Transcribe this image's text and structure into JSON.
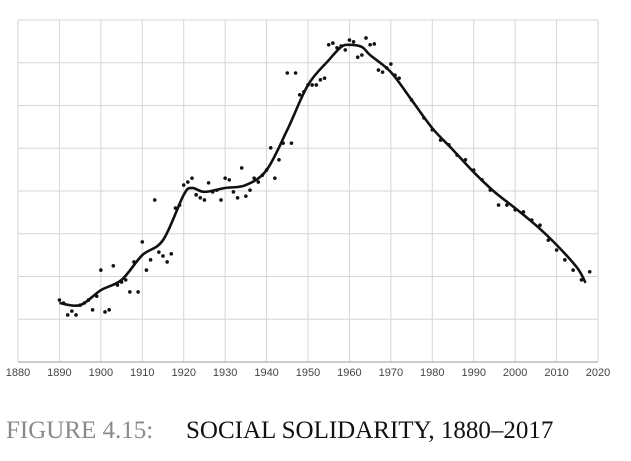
{
  "chart_data": {
    "type": "scatter-trend",
    "figure_label": "FIGURE 4.15:",
    "title": "SOCIAL SOLIDARITY, 1880–2017",
    "xlim": [
      1880,
      2020
    ],
    "xticks": [
      1880,
      1890,
      1900,
      1910,
      1920,
      1930,
      1940,
      1950,
      1960,
      1970,
      1980,
      1990,
      2000,
      2010,
      2020
    ],
    "ylim": [
      0,
      8
    ],
    "yticks": [
      1,
      2,
      3,
      4,
      5,
      6,
      7,
      8
    ],
    "show_ytick_labels": false,
    "grid": true,
    "series": [
      {
        "kind": "points",
        "color": "#111111",
        "x": [
          1890,
          1891,
          1892,
          1893,
          1894,
          1895,
          1896,
          1897,
          1898,
          1899,
          1900,
          1901,
          1902,
          1903,
          1904,
          1905,
          1906,
          1907,
          1908,
          1909,
          1910,
          1911,
          1912,
          1913,
          1914,
          1915,
          1916,
          1917,
          1918,
          1919,
          1920,
          1921,
          1922,
          1923,
          1924,
          1925,
          1926,
          1927,
          1928,
          1929,
          1930,
          1931,
          1932,
          1933,
          1934,
          1935,
          1936,
          1937,
          1938,
          1939,
          1940,
          1941,
          1942,
          1943,
          1944,
          1945,
          1946,
          1947,
          1948,
          1949,
          1950,
          1951,
          1952,
          1953,
          1954,
          1955,
          1956,
          1957,
          1958,
          1959,
          1960,
          1961,
          1962,
          1963,
          1964,
          1965,
          1966,
          1967,
          1968,
          1969,
          1970,
          1971,
          1972,
          1975,
          1978,
          1980,
          1982,
          1984,
          1986,
          1988,
          1990,
          1992,
          1994,
          1996,
          1998,
          2000,
          2002,
          2004,
          2006,
          2008,
          2010,
          2012,
          2014,
          2016,
          2018
        ],
        "values": [
          1.45,
          1.38,
          1.1,
          1.19,
          1.1,
          1.33,
          1.38,
          1.45,
          1.22,
          1.54,
          2.15,
          1.17,
          1.22,
          2.25,
          1.8,
          1.87,
          1.92,
          1.64,
          2.34,
          1.64,
          2.81,
          2.15,
          2.39,
          3.79,
          2.57,
          2.48,
          2.34,
          2.53,
          3.6,
          3.67,
          4.14,
          4.21,
          4.3,
          3.91,
          3.84,
          3.79,
          4.19,
          3.98,
          4.02,
          3.79,
          4.3,
          4.26,
          3.98,
          3.84,
          4.54,
          3.88,
          4.02,
          4.3,
          4.21,
          4.37,
          4.49,
          5.01,
          4.3,
          4.73,
          5.12,
          6.76,
          5.12,
          6.76,
          6.25,
          6.32,
          6.48,
          6.48,
          6.48,
          6.6,
          6.64,
          7.42,
          7.46,
          7.35,
          7.39,
          7.3,
          7.53,
          7.49,
          7.13,
          7.18,
          7.58,
          7.42,
          7.44,
          6.83,
          6.78,
          6.88,
          6.97,
          6.71,
          6.64,
          6.13,
          5.71,
          5.43,
          5.19,
          5.08,
          4.84,
          4.73,
          4.49,
          4.26,
          4.02,
          3.67,
          3.67,
          3.56,
          3.51,
          3.32,
          3.2,
          2.85,
          2.62,
          2.39,
          2.15,
          1.92,
          2.11
        ]
      },
      {
        "kind": "trend",
        "color": "#111111",
        "x": [
          1890,
          1895,
          1900,
          1905,
          1910,
          1915,
          1920,
          1922,
          1925,
          1930,
          1935,
          1940,
          1945,
          1950,
          1955,
          1958,
          1960,
          1963,
          1965,
          1970,
          1975,
          1980,
          1985,
          1990,
          1995,
          2000,
          2005,
          2010,
          2015,
          2017
        ],
        "values": [
          1.38,
          1.33,
          1.68,
          1.92,
          2.5,
          2.85,
          3.91,
          4.07,
          3.98,
          4.07,
          4.14,
          4.49,
          5.43,
          6.48,
          7.06,
          7.37,
          7.42,
          7.37,
          7.18,
          6.78,
          6.13,
          5.47,
          4.96,
          4.44,
          3.98,
          3.6,
          3.2,
          2.74,
          2.2,
          1.85
        ]
      }
    ]
  }
}
